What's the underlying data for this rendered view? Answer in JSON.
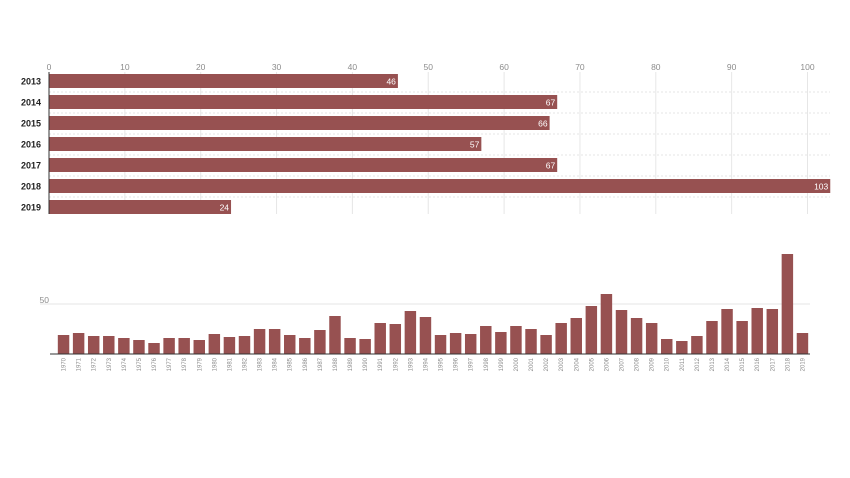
{
  "colors": {
    "bar": "#975151",
    "grid": "#e6e6e6",
    "axis": "#333333",
    "tick_text": "#8c8c8c",
    "label_text": "#222222",
    "value_text": "#ffffff"
  },
  "chart_data": [
    {
      "type": "bar",
      "orientation": "horizontal",
      "categories": [
        "2013",
        "2014",
        "2015",
        "2016",
        "2017",
        "2018",
        "2019"
      ],
      "values": [
        46,
        67,
        66,
        57,
        67,
        103,
        24
      ],
      "value_labels": [
        "46",
        "67",
        "66",
        "57",
        "67",
        "103",
        "24"
      ],
      "xticks": [
        0,
        10,
        20,
        30,
        40,
        50,
        60,
        70,
        80,
        90,
        100
      ],
      "xtick_labels": [
        "0",
        "10",
        "20",
        "30",
        "40",
        "50",
        "60",
        "70",
        "80",
        "90",
        "100"
      ],
      "xlim": [
        0,
        103
      ],
      "grid": true,
      "x_axis_position": "top"
    },
    {
      "type": "bar",
      "orientation": "vertical",
      "categories": [
        "1970",
        "1971",
        "1972",
        "1973",
        "1974",
        "1975",
        "1976",
        "1977",
        "1978",
        "1979",
        "1980",
        "1981",
        "1982",
        "1983",
        "1984",
        "1985",
        "1986",
        "1987",
        "1988",
        "1989",
        "1990",
        "1991",
        "1992",
        "1993",
        "1994",
        "1995",
        "1996",
        "1997",
        "1998",
        "1999",
        "2000",
        "2001",
        "2002",
        "2003",
        "2004",
        "2005",
        "2006",
        "2007",
        "2008",
        "2009",
        "2010",
        "2011",
        "2012",
        "2013",
        "2014",
        "2015",
        "2016",
        "2017",
        "2018",
        "2019"
      ],
      "values": [
        19,
        21,
        18,
        18,
        16,
        14,
        11,
        16,
        16,
        14,
        20,
        17,
        18,
        25,
        25,
        19,
        16,
        24,
        38,
        16,
        15,
        31,
        30,
        43,
        37,
        19,
        21,
        20,
        28,
        22,
        28,
        25,
        19,
        31,
        36,
        48,
        60,
        44,
        36,
        31,
        15,
        13,
        18,
        33,
        45,
        33,
        46,
        45,
        100,
        21
      ],
      "yticks": [
        50
      ],
      "ytick_labels": [
        "50"
      ],
      "ylim": [
        0,
        100
      ],
      "grid": true
    }
  ]
}
